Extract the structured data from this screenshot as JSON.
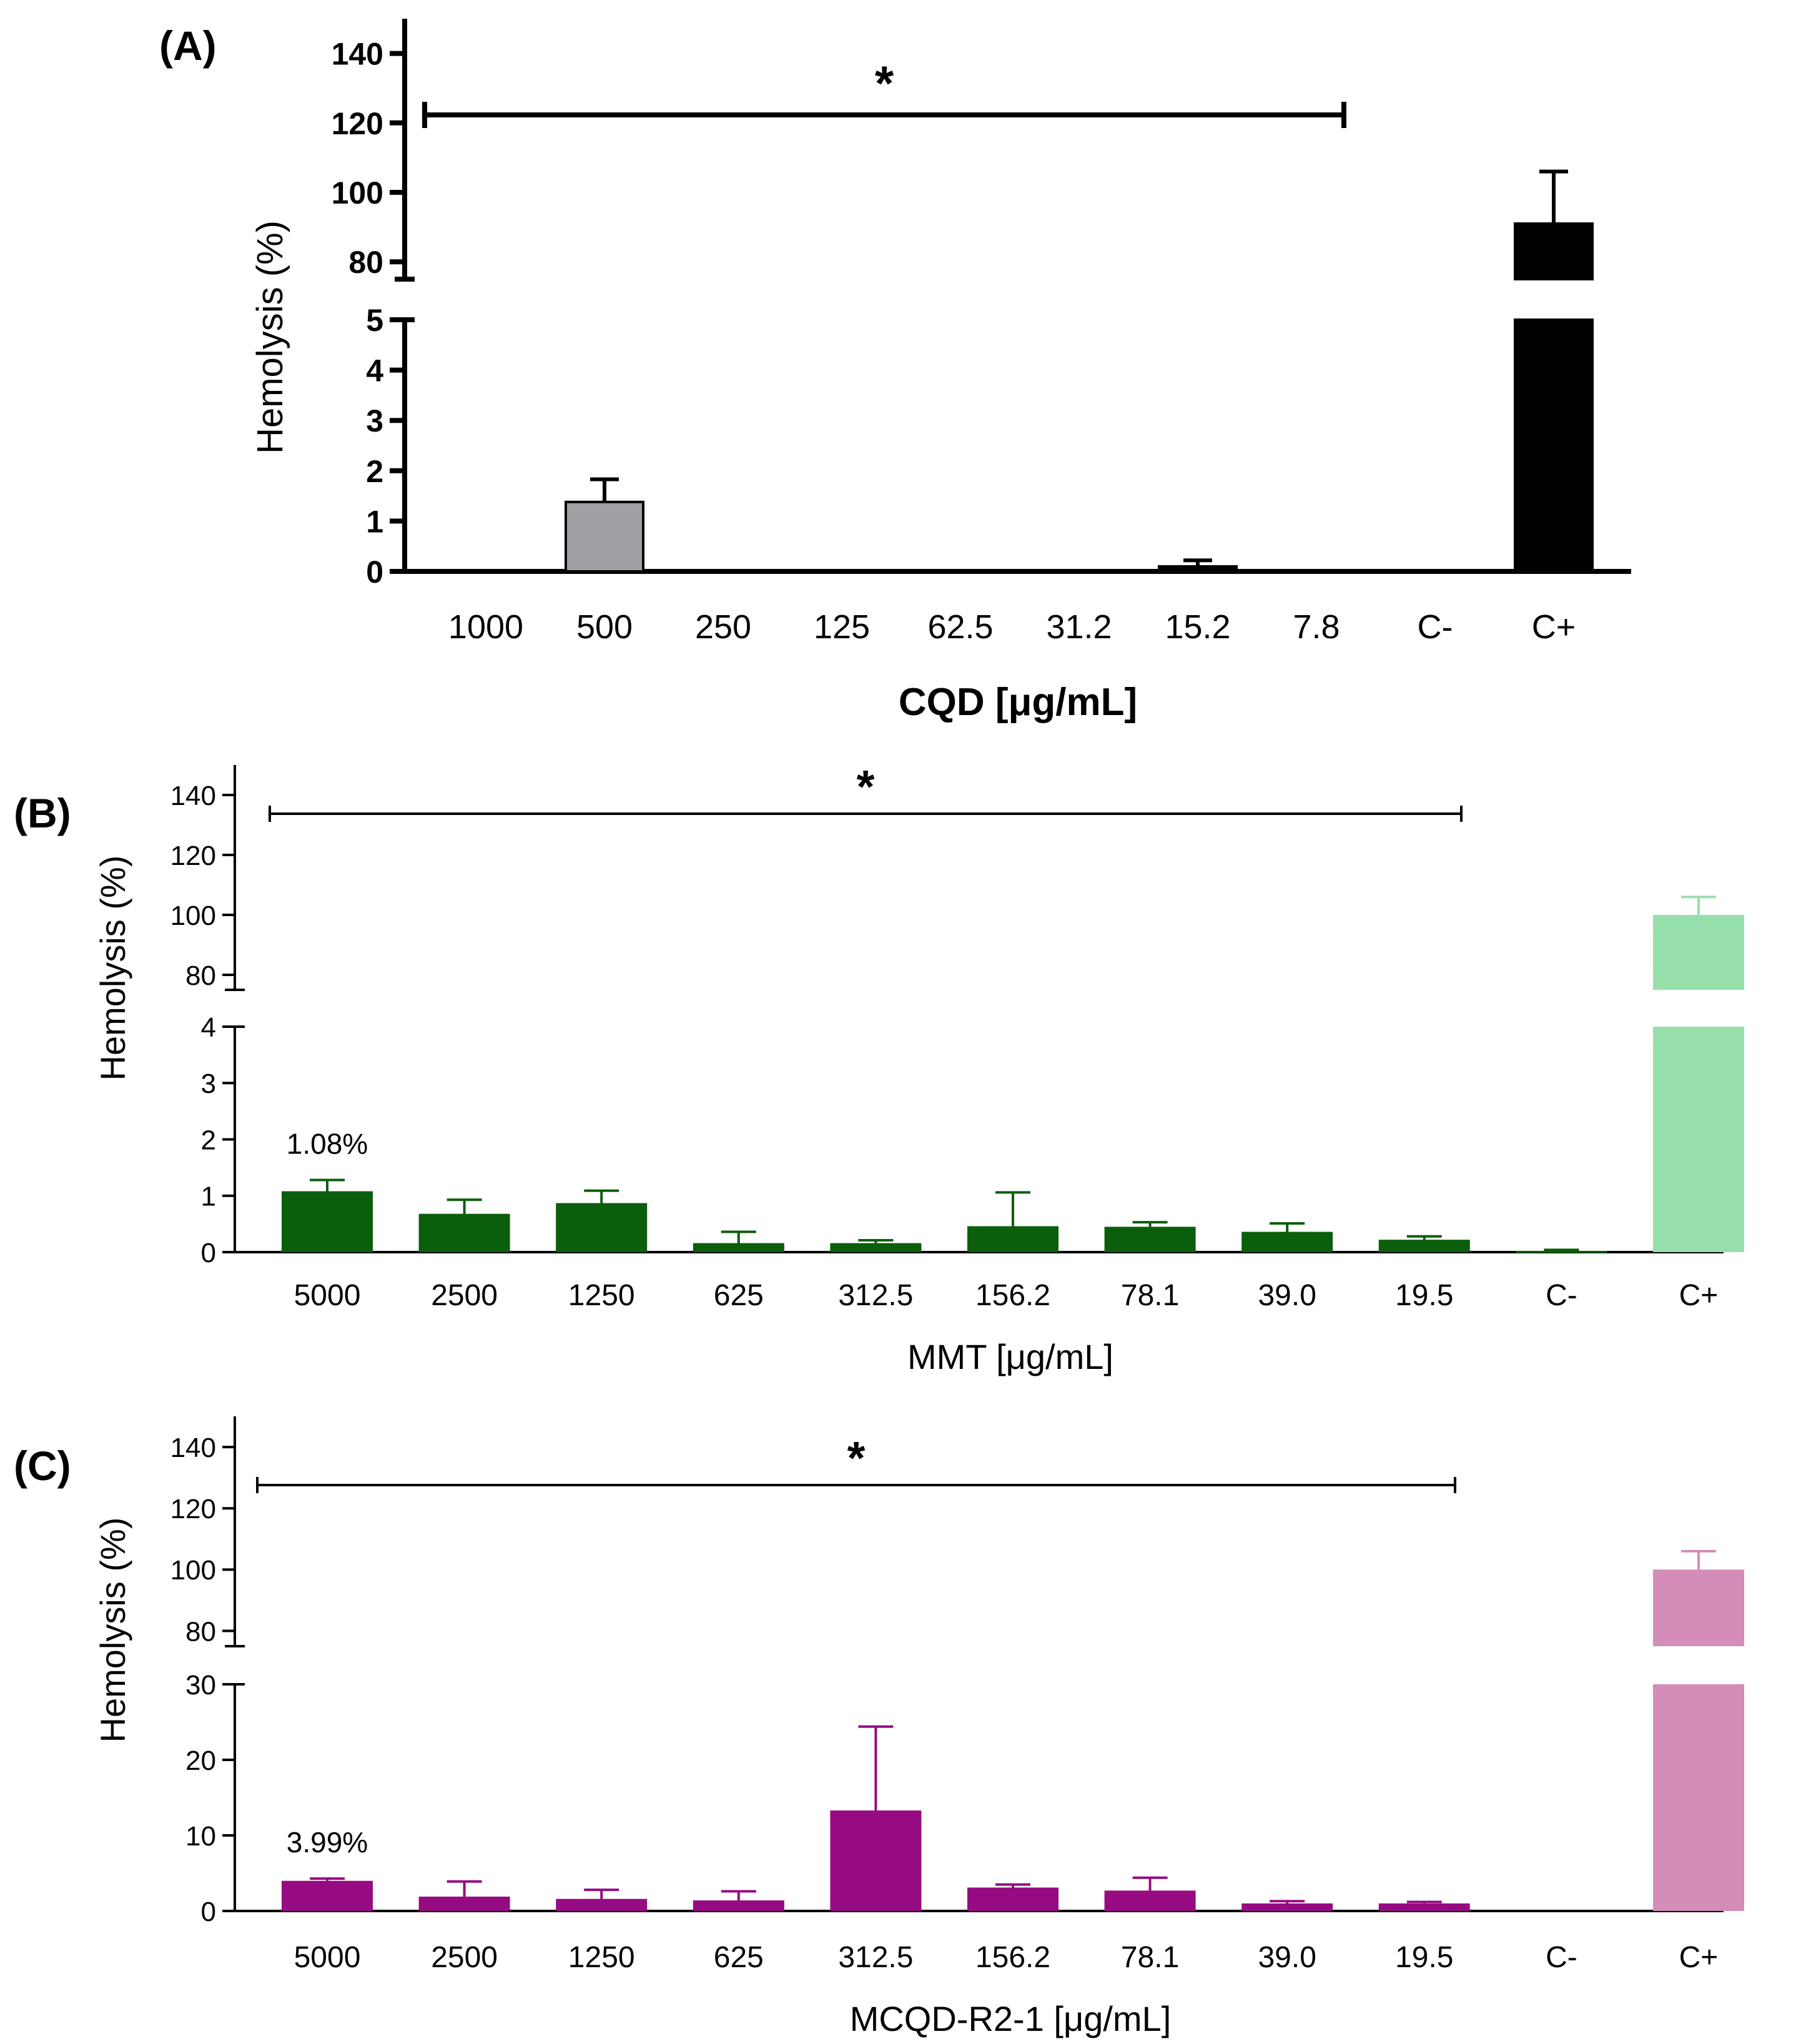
{
  "chart_data": [
    {
      "type": "bar",
      "panel_label": "(A)",
      "title": "",
      "ylabel": "Hemolysis (%)",
      "xlabel": "CQD [μg/mL]",
      "categories": [
        "1000",
        "500",
        "250",
        "125",
        "62.5",
        "31.2",
        "15.2",
        "7.8",
        "C-",
        "C+"
      ],
      "values": [
        0,
        1.38,
        0,
        0,
        0,
        0,
        0.1,
        0,
        0,
        91
      ],
      "errors": [
        0,
        0.45,
        0,
        0,
        0,
        0,
        0.12,
        0,
        0,
        15
      ],
      "bar_colors": [
        "#A0A0A4",
        "#A0A0A4",
        "#A0A0A4",
        "#A0A0A4",
        "#A0A0A4",
        "#A0A0A4",
        "#000000",
        "#000000",
        "#000000",
        "#000000"
      ],
      "error_color": "#000000",
      "lower_range": [
        0,
        5
      ],
      "upper_range": [
        75,
        150
      ],
      "lower_ticks": [
        "0",
        "1",
        "2",
        "3",
        "4",
        "5"
      ],
      "upper_ticks": [
        "80",
        "100",
        "120",
        "140"
      ],
      "value_labels": {},
      "significance": {
        "label": "*",
        "from": "1000",
        "to": "7.8"
      }
    },
    {
      "type": "bar",
      "panel_label": "(B)",
      "title": "",
      "ylabel": "Hemolysis (%)",
      "xlabel": "MMT [μg/mL]",
      "categories": [
        "5000",
        "2500",
        "1250",
        "625",
        "312.5",
        "156.2",
        "78.1",
        "39.0",
        "19.5",
        "C-",
        "C+"
      ],
      "values": [
        1.08,
        0.68,
        0.87,
        0.16,
        0.16,
        0.46,
        0.45,
        0.36,
        0.22,
        0.02,
        100
      ],
      "errors": [
        0.2,
        0.25,
        0.22,
        0.2,
        0.05,
        0.6,
        0.08,
        0.15,
        0.06,
        0.02,
        6
      ],
      "bar_colors": [
        "#0B5E0B",
        "#0B5E0B",
        "#0B5E0B",
        "#0B5E0B",
        "#0B5E0B",
        "#0B5E0B",
        "#0B5E0B",
        "#0B5E0B",
        "#0B5E0B",
        "#0B5E0B",
        "#96DFAB"
      ],
      "error_color": "#0B5E0B",
      "cplus_error_color": "#96DFAB",
      "lower_range": [
        0,
        4
      ],
      "upper_range": [
        75,
        150
      ],
      "lower_ticks": [
        "0",
        "1",
        "2",
        "3",
        "4"
      ],
      "upper_ticks": [
        "80",
        "100",
        "120",
        "140"
      ],
      "value_labels": {
        "5000": "1.08%"
      },
      "significance": {
        "label": "*",
        "from": "5000",
        "to": "19.5"
      }
    },
    {
      "type": "bar",
      "panel_label": "(C)",
      "title": "",
      "ylabel": "Hemolysis (%)",
      "xlabel": "MCQD-R2-1 [μg/mL]",
      "categories": [
        "5000",
        "2500",
        "1250",
        "625",
        "312.5",
        "156.2",
        "78.1",
        "39.0",
        "19.5",
        "C-",
        "C+"
      ],
      "values": [
        3.99,
        1.9,
        1.6,
        1.4,
        13.3,
        3.1,
        2.7,
        1.0,
        1.0,
        0,
        100
      ],
      "errors": [
        0.3,
        2.0,
        1.2,
        1.2,
        11.1,
        0.4,
        1.7,
        0.3,
        0.2,
        0,
        6
      ],
      "bar_colors": [
        "#960B82",
        "#960B82",
        "#960B82",
        "#960B82",
        "#960B82",
        "#960B82",
        "#960B82",
        "#960B82",
        "#960B82",
        "#960B82",
        "#D48CB8"
      ],
      "error_color": "#960B82",
      "cplus_error_color": "#D48CB8",
      "lower_range": [
        0,
        30
      ],
      "upper_range": [
        75,
        150
      ],
      "lower_ticks": [
        "0",
        "10",
        "20",
        "30"
      ],
      "upper_ticks": [
        "80",
        "100",
        "120",
        "140"
      ],
      "value_labels": {
        "5000": "3.99%"
      },
      "significance": {
        "label": "*",
        "from": "5000",
        "to": "19.5"
      }
    }
  ]
}
